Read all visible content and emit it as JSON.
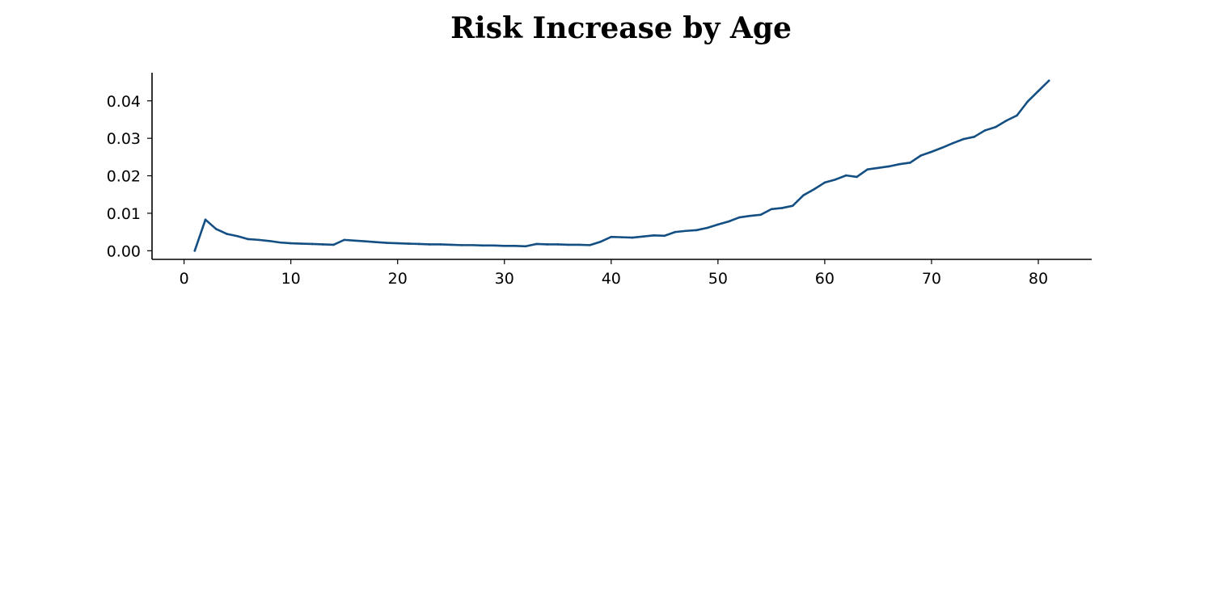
{
  "chart_data": {
    "type": "line",
    "title": "Risk Increase by Age",
    "xlabel": "",
    "ylabel": "",
    "xlim": [
      -3,
      85
    ],
    "ylim": [
      -0.0023,
      0.0475
    ],
    "x_ticks": [
      0,
      10,
      20,
      30,
      40,
      50,
      60,
      70,
      80
    ],
    "y_ticks": [
      0.0,
      0.01,
      0.02,
      0.03,
      0.04
    ],
    "y_tick_labels": [
      "0.00",
      "0.01",
      "0.02",
      "0.03",
      "0.04"
    ],
    "grid": false,
    "line_color": "#134f82",
    "series": [
      {
        "x": [
          1,
          2,
          3,
          4,
          5,
          6,
          7,
          8,
          9,
          10,
          11,
          12,
          13,
          14,
          15,
          16,
          17,
          18,
          19,
          20,
          21,
          22,
          23,
          24,
          25,
          26,
          27,
          28,
          29,
          30,
          31,
          32,
          33,
          34,
          35,
          36,
          37,
          38,
          39,
          40,
          41,
          42,
          43,
          44,
          45,
          46,
          47,
          48,
          49,
          50,
          51,
          52,
          53,
          54,
          55,
          56,
          57,
          58,
          59,
          60,
          61,
          62,
          63,
          64,
          65,
          66,
          67,
          68,
          69,
          70,
          71,
          72,
          73,
          74,
          75,
          76,
          77,
          78,
          79,
          80,
          81
        ],
        "values": [
          0.0,
          0.0083,
          0.0058,
          0.0045,
          0.0039,
          0.0031,
          0.0029,
          0.0026,
          0.0022,
          0.002,
          0.0019,
          0.0018,
          0.0017,
          0.0016,
          0.0029,
          0.0027,
          0.0025,
          0.0023,
          0.0021,
          0.002,
          0.0019,
          0.0018,
          0.0017,
          0.0017,
          0.0016,
          0.0015,
          0.0015,
          0.0014,
          0.0014,
          0.0013,
          0.0013,
          0.0012,
          0.0018,
          0.0017,
          0.0017,
          0.0016,
          0.0016,
          0.0015,
          0.0024,
          0.0037,
          0.0036,
          0.0035,
          0.0038,
          0.0041,
          0.004,
          0.005,
          0.0053,
          0.0055,
          0.0061,
          0.007,
          0.0078,
          0.0089,
          0.0093,
          0.0096,
          0.0111,
          0.0114,
          0.012,
          0.0148,
          0.0164,
          0.0182,
          0.019,
          0.0201,
          0.0197,
          0.0217,
          0.0221,
          0.0225,
          0.0231,
          0.0235,
          0.0254,
          0.0264,
          0.0275,
          0.0287,
          0.0298,
          0.0304,
          0.0321,
          0.033,
          0.0347,
          0.0361,
          0.0398,
          0.0426,
          0.0454
        ]
      }
    ]
  }
}
